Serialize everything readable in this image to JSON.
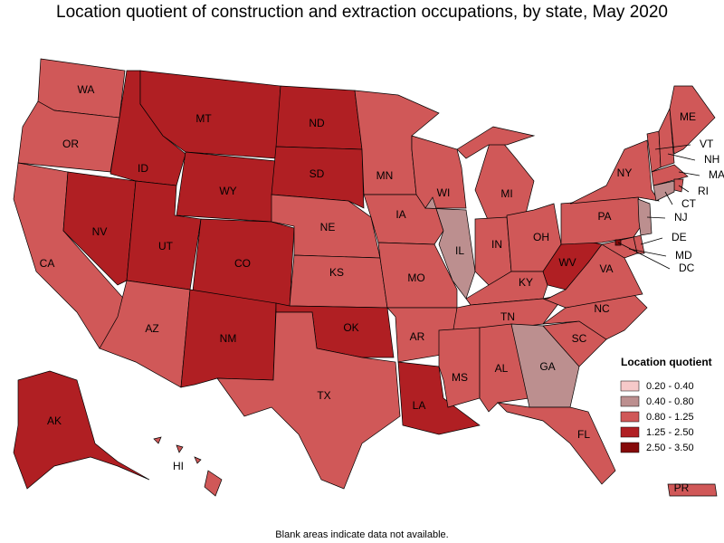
{
  "title": "Location quotient of construction and extraction occupations, by state, May 2020",
  "legend": {
    "title": "Location quotient",
    "items": [
      {
        "label": "0.20 - 0.40",
        "color": "#f6c9c9"
      },
      {
        "label": "0.40 - 0.80",
        "color": "#bc8f8f"
      },
      {
        "label": "0.80 - 1.25",
        "color": "#d05858"
      },
      {
        "label": "1.25 - 2.50",
        "color": "#b01f23"
      },
      {
        "label": "2.50 - 3.50",
        "color": "#850a0a"
      }
    ]
  },
  "states": [
    {
      "abbr": "WA",
      "bin": 2
    },
    {
      "abbr": "OR",
      "bin": 2
    },
    {
      "abbr": "CA",
      "bin": 2
    },
    {
      "abbr": "NV",
      "bin": 3
    },
    {
      "abbr": "ID",
      "bin": 3
    },
    {
      "abbr": "MT",
      "bin": 3
    },
    {
      "abbr": "WY",
      "bin": 3
    },
    {
      "abbr": "UT",
      "bin": 3
    },
    {
      "abbr": "CO",
      "bin": 3
    },
    {
      "abbr": "AZ",
      "bin": 2
    },
    {
      "abbr": "NM",
      "bin": 3
    },
    {
      "abbr": "ND",
      "bin": 3
    },
    {
      "abbr": "SD",
      "bin": 3
    },
    {
      "abbr": "NE",
      "bin": 2
    },
    {
      "abbr": "KS",
      "bin": 2
    },
    {
      "abbr": "OK",
      "bin": 3
    },
    {
      "abbr": "TX",
      "bin": 2
    },
    {
      "abbr": "MN",
      "bin": 2
    },
    {
      "abbr": "IA",
      "bin": 2
    },
    {
      "abbr": "MO",
      "bin": 2
    },
    {
      "abbr": "AR",
      "bin": 2
    },
    {
      "abbr": "LA",
      "bin": 3
    },
    {
      "abbr": "WI",
      "bin": 2
    },
    {
      "abbr": "IL",
      "bin": 1
    },
    {
      "abbr": "MI",
      "bin": 2
    },
    {
      "abbr": "IN",
      "bin": 2
    },
    {
      "abbr": "OH",
      "bin": 2
    },
    {
      "abbr": "KY",
      "bin": 2
    },
    {
      "abbr": "TN",
      "bin": 2
    },
    {
      "abbr": "MS",
      "bin": 2
    },
    {
      "abbr": "AL",
      "bin": 2
    },
    {
      "abbr": "GA",
      "bin": 1
    },
    {
      "abbr": "FL",
      "bin": 2
    },
    {
      "abbr": "SC",
      "bin": 2
    },
    {
      "abbr": "NC",
      "bin": 2
    },
    {
      "abbr": "VA",
      "bin": 2
    },
    {
      "abbr": "WV",
      "bin": 3
    },
    {
      "abbr": "PA",
      "bin": 2
    },
    {
      "abbr": "NY",
      "bin": 2
    },
    {
      "abbr": "VT",
      "bin": 2
    },
    {
      "abbr": "NH",
      "bin": 2
    },
    {
      "abbr": "ME",
      "bin": 2
    },
    {
      "abbr": "MA",
      "bin": 2
    },
    {
      "abbr": "RI",
      "bin": 2
    },
    {
      "abbr": "CT",
      "bin": 1
    },
    {
      "abbr": "NJ",
      "bin": 1
    },
    {
      "abbr": "DE",
      "bin": 2
    },
    {
      "abbr": "MD",
      "bin": 2
    },
    {
      "abbr": "DC",
      "bin": 4
    },
    {
      "abbr": "AK",
      "bin": 3
    },
    {
      "abbr": "HI",
      "bin": 2
    },
    {
      "abbr": "PR",
      "bin": 2
    }
  ],
  "footnote": "Blank areas indicate data not available."
}
